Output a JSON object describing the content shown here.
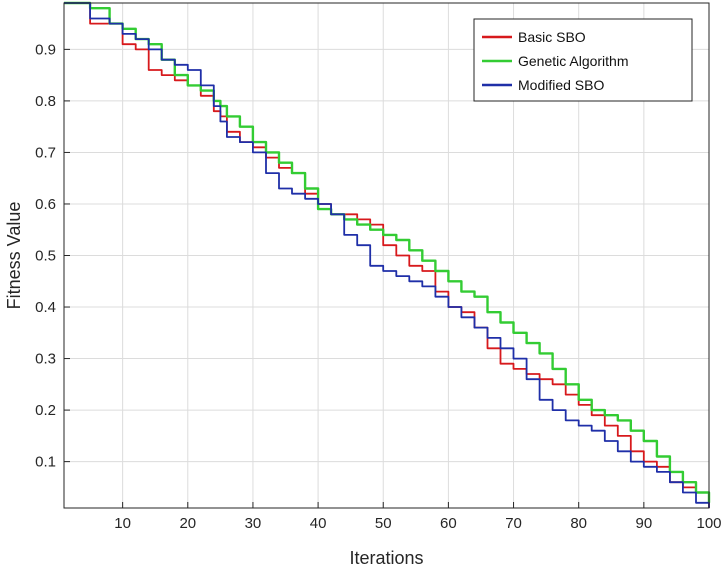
{
  "chart_data": {
    "type": "line",
    "title": "",
    "xlabel": "Iterations",
    "ylabel": "Fitness Value",
    "xlim": [
      1,
      100
    ],
    "ylim": [
      0.01,
      0.99
    ],
    "xticks": [
      10,
      20,
      30,
      40,
      50,
      60,
      70,
      80,
      90,
      100
    ],
    "xtick_labels": [
      "10",
      "20",
      "30",
      "40",
      "50",
      "60",
      "70",
      "80",
      "90",
      "100"
    ],
    "yticks": [
      0.1,
      0.2,
      0.3,
      0.4,
      0.5,
      0.6,
      0.7,
      0.8,
      0.9
    ],
    "ytick_labels": [
      "0.1",
      "0.2",
      "0.3",
      "0.4",
      "0.5",
      "0.6",
      "0.7",
      "0.8",
      "0.9"
    ],
    "grid": true,
    "legend_position": "top-right",
    "x": [
      1,
      5,
      8,
      10,
      12,
      14,
      16,
      18,
      20,
      22,
      24,
      25,
      26,
      28,
      30,
      32,
      34,
      36,
      38,
      40,
      42,
      44,
      46,
      48,
      50,
      52,
      54,
      56,
      58,
      60,
      62,
      64,
      66,
      68,
      70,
      72,
      74,
      76,
      78,
      80,
      82,
      84,
      86,
      88,
      90,
      92,
      94,
      96,
      98,
      100
    ],
    "series": [
      {
        "name": "Basic SBO",
        "color": "#d7191c",
        "values": [
          0.99,
          0.95,
          0.95,
          0.91,
          0.9,
          0.86,
          0.85,
          0.84,
          0.83,
          0.81,
          0.78,
          0.77,
          0.74,
          0.72,
          0.71,
          0.69,
          0.67,
          0.66,
          0.62,
          0.6,
          0.58,
          0.58,
          0.57,
          0.56,
          0.52,
          0.5,
          0.48,
          0.47,
          0.43,
          0.4,
          0.39,
          0.36,
          0.32,
          0.29,
          0.28,
          0.27,
          0.26,
          0.25,
          0.23,
          0.21,
          0.19,
          0.17,
          0.15,
          0.12,
          0.1,
          0.09,
          0.06,
          0.05,
          0.04,
          0.01
        ]
      },
      {
        "name": "Genetic Algorithm",
        "color": "#33cc33",
        "values": [
          0.99,
          0.98,
          0.95,
          0.94,
          0.92,
          0.91,
          0.88,
          0.85,
          0.83,
          0.82,
          0.8,
          0.79,
          0.77,
          0.75,
          0.72,
          0.7,
          0.68,
          0.66,
          0.63,
          0.59,
          0.58,
          0.57,
          0.56,
          0.55,
          0.54,
          0.53,
          0.51,
          0.49,
          0.47,
          0.45,
          0.43,
          0.42,
          0.39,
          0.37,
          0.35,
          0.33,
          0.31,
          0.28,
          0.25,
          0.22,
          0.2,
          0.19,
          0.18,
          0.16,
          0.14,
          0.11,
          0.08,
          0.06,
          0.04,
          0.02
        ]
      },
      {
        "name": "Modified SBO",
        "color": "#1f2fa8",
        "values": [
          0.99,
          0.96,
          0.95,
          0.93,
          0.92,
          0.9,
          0.88,
          0.87,
          0.86,
          0.83,
          0.79,
          0.76,
          0.73,
          0.72,
          0.7,
          0.66,
          0.63,
          0.62,
          0.61,
          0.6,
          0.58,
          0.54,
          0.52,
          0.48,
          0.47,
          0.46,
          0.45,
          0.44,
          0.42,
          0.4,
          0.38,
          0.36,
          0.34,
          0.32,
          0.3,
          0.26,
          0.22,
          0.2,
          0.18,
          0.17,
          0.16,
          0.14,
          0.12,
          0.1,
          0.09,
          0.08,
          0.06,
          0.04,
          0.02,
          0.01
        ]
      }
    ]
  }
}
